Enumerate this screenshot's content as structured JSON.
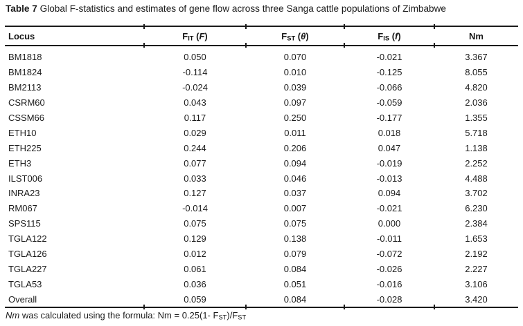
{
  "colors": {
    "background": "#ffffff",
    "text": "#1b1b1b",
    "rule": "#1a1a1a"
  },
  "title": {
    "label": "Table 7",
    "text": "Global F-statistics and estimates of gene flow across three Sanga cattle populations of Zimbabwe"
  },
  "table": {
    "columns": [
      {
        "parts": [
          {
            "t": "Locus"
          }
        ]
      },
      {
        "parts": [
          {
            "t": "F"
          },
          {
            "t": "IT",
            "style": "sub"
          },
          {
            "t": " ("
          },
          {
            "t": "F",
            "style": "italic"
          },
          {
            "t": ")"
          }
        ]
      },
      {
        "parts": [
          {
            "t": "F"
          },
          {
            "t": "ST",
            "style": "sub"
          },
          {
            "t": " ("
          },
          {
            "t": "θ",
            "style": "italic"
          },
          {
            "t": ")"
          }
        ]
      },
      {
        "parts": [
          {
            "t": "F"
          },
          {
            "t": "IS",
            "style": "sub"
          },
          {
            "t": " ("
          },
          {
            "t": "f",
            "style": "italic"
          },
          {
            "t": ")"
          }
        ]
      },
      {
        "parts": [
          {
            "t": "Nm"
          }
        ]
      }
    ],
    "rows": [
      [
        "BM1818",
        "0.050",
        "0.070",
        "-0.021",
        "3.367"
      ],
      [
        "BM1824",
        "-0.114",
        "0.010",
        "-0.125",
        "8.055"
      ],
      [
        "BM2113",
        "-0.024",
        "0.039",
        "-0.066",
        "4.820"
      ],
      [
        "CSRM60",
        "0.043",
        "0.097",
        "-0.059",
        "2.036"
      ],
      [
        "CSSM66",
        "0.117",
        "0.250",
        "-0.177",
        "1.355"
      ],
      [
        "ETH10",
        "0.029",
        "0.011",
        "0.018",
        "5.718"
      ],
      [
        "ETH225",
        "0.244",
        "0.206",
        "0.047",
        "1.138"
      ],
      [
        "ETH3",
        "0.077",
        "0.094",
        "-0.019",
        "2.252"
      ],
      [
        "ILST006",
        "0.033",
        "0.046",
        "-0.013",
        "4.488"
      ],
      [
        "INRA23",
        "0.127",
        "0.037",
        "0.094",
        "3.702"
      ],
      [
        "RM067",
        "-0.014",
        "0.007",
        "-0.021",
        "6.230"
      ],
      [
        "SPS115",
        "0.075",
        "0.075",
        "0.000",
        "2.384"
      ],
      [
        "TGLA122",
        "0.129",
        "0.138",
        "-0.011",
        "1.653"
      ],
      [
        "TGLA126",
        "0.012",
        "0.079",
        "-0.072",
        "2.192"
      ],
      [
        "TGLA227",
        "0.061",
        "0.084",
        "-0.026",
        "2.227"
      ],
      [
        "TGLA53",
        "0.036",
        "0.051",
        "-0.016",
        "3.106"
      ],
      [
        "Overall",
        "0.059",
        "0.084",
        "-0.028",
        "3.420"
      ]
    ]
  },
  "footnote": {
    "parts": [
      {
        "t": "Nm",
        "style": "italic"
      },
      {
        "t": " was calculated using the formula: Nm = 0.25(1- F"
      },
      {
        "t": "ST",
        "style": "sub"
      },
      {
        "t": ")/F"
      },
      {
        "t": "ST",
        "style": "sub"
      }
    ]
  }
}
